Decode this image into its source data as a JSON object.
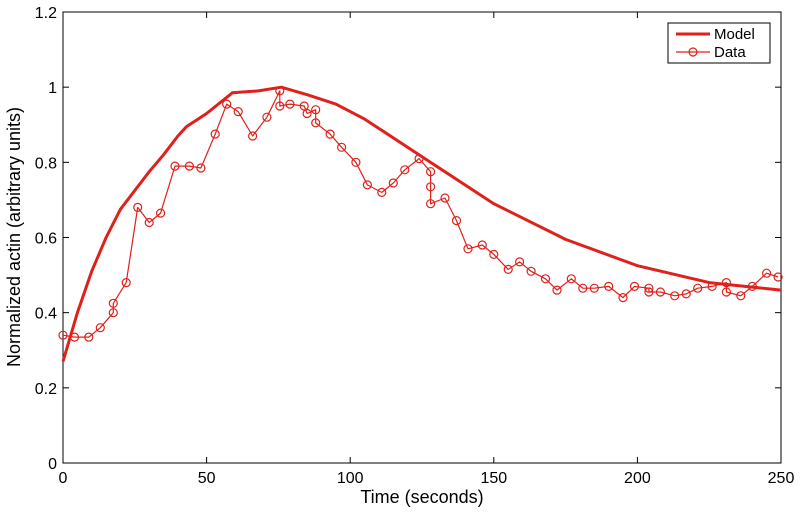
{
  "chart_data": {
    "type": "line",
    "title": "",
    "xlabel": "Time (seconds)",
    "ylabel": "Normalized actin (arbitrary units)",
    "xlim": [
      0,
      250
    ],
    "ylim": [
      0,
      1.2
    ],
    "xticks": [
      0,
      50,
      100,
      150,
      200,
      250
    ],
    "yticks": [
      0,
      0.2,
      0.4,
      0.6,
      0.8,
      1.0,
      1.2
    ],
    "xtick_labels": [
      "0",
      "50",
      "100",
      "150",
      "200",
      "250"
    ],
    "ytick_labels": [
      "0",
      "0.2",
      "0.4",
      "0.6",
      "0.8",
      "1",
      "1.2"
    ],
    "grid": false,
    "legend_position": "top-right",
    "series": [
      {
        "name": "Model",
        "color": "#e0201b",
        "marker": "none",
        "x": [
          0,
          5,
          10,
          15,
          20,
          25,
          30,
          35,
          40,
          43,
          50,
          59,
          68,
          76,
          85,
          95,
          105,
          115,
          125,
          135,
          150,
          175,
          200,
          225,
          250
        ],
        "y": [
          0.27,
          0.4,
          0.51,
          0.6,
          0.675,
          0.725,
          0.775,
          0.82,
          0.87,
          0.895,
          0.93,
          0.985,
          0.99,
          1.0,
          0.98,
          0.955,
          0.915,
          0.865,
          0.815,
          0.765,
          0.69,
          0.595,
          0.525,
          0.48,
          0.46
        ]
      },
      {
        "name": "Data",
        "color": "#e0201b",
        "marker": "circle",
        "x": [
          0,
          4,
          9,
          13,
          17.5,
          17.5,
          22,
          26,
          30,
          34,
          39,
          44,
          48,
          53,
          57,
          61,
          66,
          71,
          75.5,
          75.5,
          79,
          84,
          85,
          88,
          88,
          93,
          97,
          102,
          106,
          111,
          115,
          119,
          124,
          128,
          128,
          128,
          133,
          137,
          141,
          146,
          150,
          155,
          159,
          163,
          168,
          172,
          177,
          181,
          185,
          190,
          195,
          199,
          204,
          204,
          208,
          213,
          217,
          221,
          226,
          231,
          231,
          236,
          240,
          245,
          249
        ],
        "y": [
          0.34,
          0.335,
          0.335,
          0.36,
          0.4,
          0.425,
          0.48,
          0.68,
          0.64,
          0.665,
          0.79,
          0.79,
          0.785,
          0.875,
          0.955,
          0.935,
          0.87,
          0.92,
          0.99,
          0.95,
          0.955,
          0.95,
          0.93,
          0.94,
          0.905,
          0.875,
          0.84,
          0.8,
          0.74,
          0.72,
          0.745,
          0.78,
          0.81,
          0.775,
          0.735,
          0.69,
          0.705,
          0.645,
          0.57,
          0.58,
          0.555,
          0.515,
          0.535,
          0.51,
          0.49,
          0.46,
          0.49,
          0.465,
          0.465,
          0.47,
          0.44,
          0.47,
          0.465,
          0.455,
          0.455,
          0.445,
          0.45,
          0.465,
          0.47,
          0.48,
          0.455,
          0.445,
          0.47,
          0.505,
          0.495
        ]
      }
    ]
  }
}
